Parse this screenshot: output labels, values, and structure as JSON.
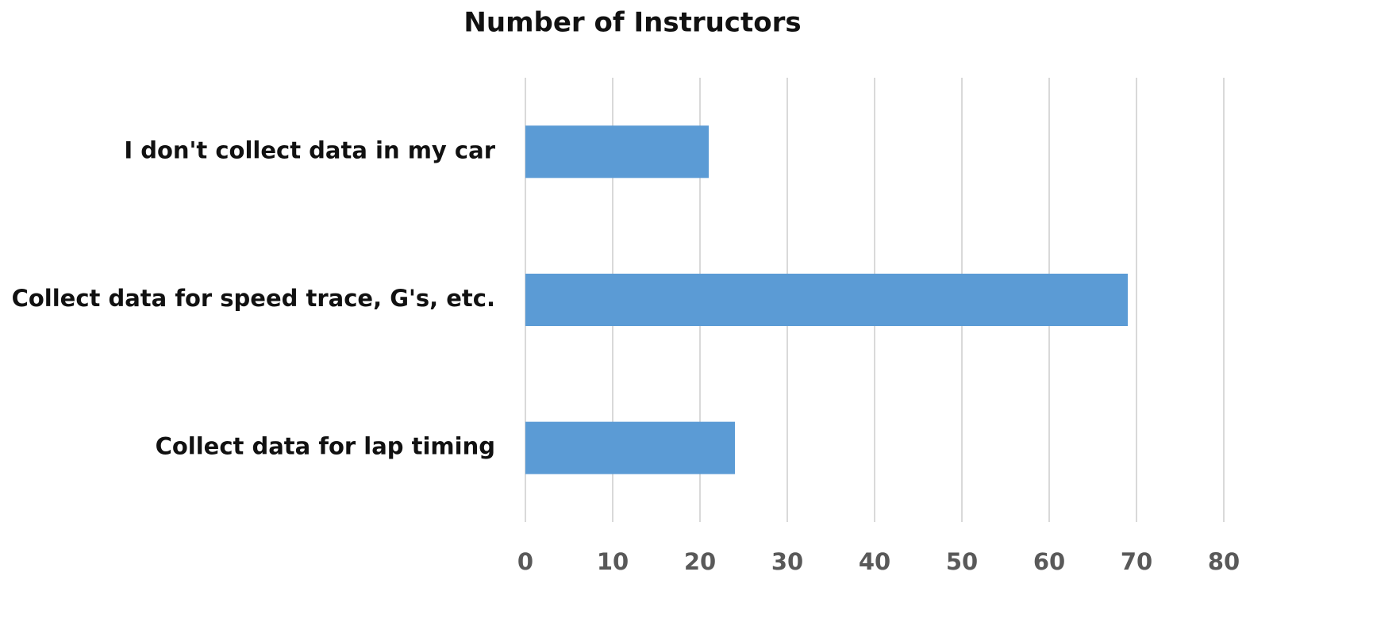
{
  "chart_data": {
    "type": "barh",
    "title": "Number of Instructors",
    "categories": [
      "I don't collect data in my car",
      "Collect data for speed trace, G's, etc.",
      "Collect data for lap timing"
    ],
    "values": [
      21,
      69,
      24
    ],
    "color": "#5b9bd5",
    "xlim": [
      0,
      80
    ],
    "xticks": [
      0,
      10,
      20,
      30,
      40,
      50,
      60,
      70,
      80
    ],
    "grid": true
  }
}
